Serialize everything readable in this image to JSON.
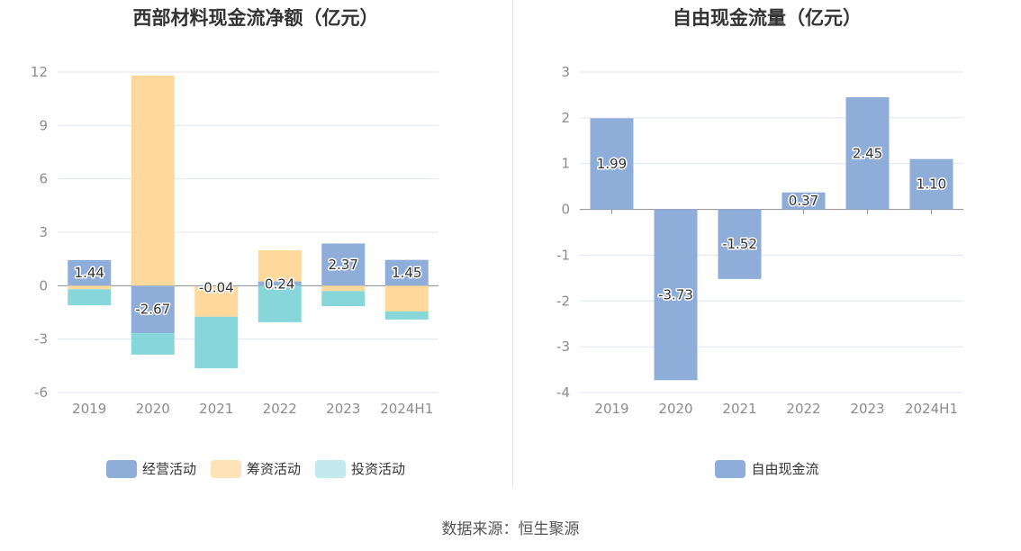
{
  "source": "数据来源：恒生聚源",
  "chart_data": [
    {
      "type": "bar",
      "stacked": true,
      "title": "西部材料现金流净额（亿元）",
      "categories": [
        "2019",
        "2020",
        "2021",
        "2022",
        "2023",
        "2024H1"
      ],
      "ylim": [
        -6,
        12
      ],
      "yticks": [
        12,
        9,
        6,
        3,
        0,
        -3,
        -6
      ],
      "grid": true,
      "legend_position": "bottom",
      "series": [
        {
          "name": "经营活动",
          "color": "#8eadd9",
          "values": [
            1.44,
            -2.67,
            -0.04,
            0.24,
            2.37,
            1.45
          ]
        },
        {
          "name": "筹资活动",
          "color": "#fed99b",
          "values": [
            -0.2,
            11.8,
            -1.7,
            1.75,
            -0.3,
            -1.45
          ]
        },
        {
          "name": "投资活动",
          "color": "#87d6da",
          "values": [
            -0.9,
            -1.2,
            -2.9,
            -2.05,
            -0.85,
            -0.45
          ]
        }
      ],
      "legend_colors": [
        "#8eadd9",
        "#fee3b8",
        "#c3eaec"
      ],
      "data_labels": [
        "1.44",
        "-2.67",
        "-0.04",
        "0.24",
        "2.37",
        "1.45"
      ]
    },
    {
      "type": "bar",
      "title": "自由现金流量（亿元）",
      "categories": [
        "2019",
        "2020",
        "2021",
        "2022",
        "2023",
        "2024H1"
      ],
      "ylim": [
        -4,
        3
      ],
      "yticks": [
        3,
        2,
        1,
        0,
        -1,
        -2,
        -3,
        -4
      ],
      "grid": true,
      "legend_position": "bottom",
      "series": [
        {
          "name": "自由现金流",
          "color": "#8eadd9",
          "values": [
            1.99,
            -3.73,
            -1.52,
            0.37,
            2.45,
            1.1
          ]
        }
      ],
      "data_labels": [
        "1.99",
        "-3.73",
        "-1.52",
        "0.37",
        "2.45",
        "1.10"
      ]
    }
  ]
}
